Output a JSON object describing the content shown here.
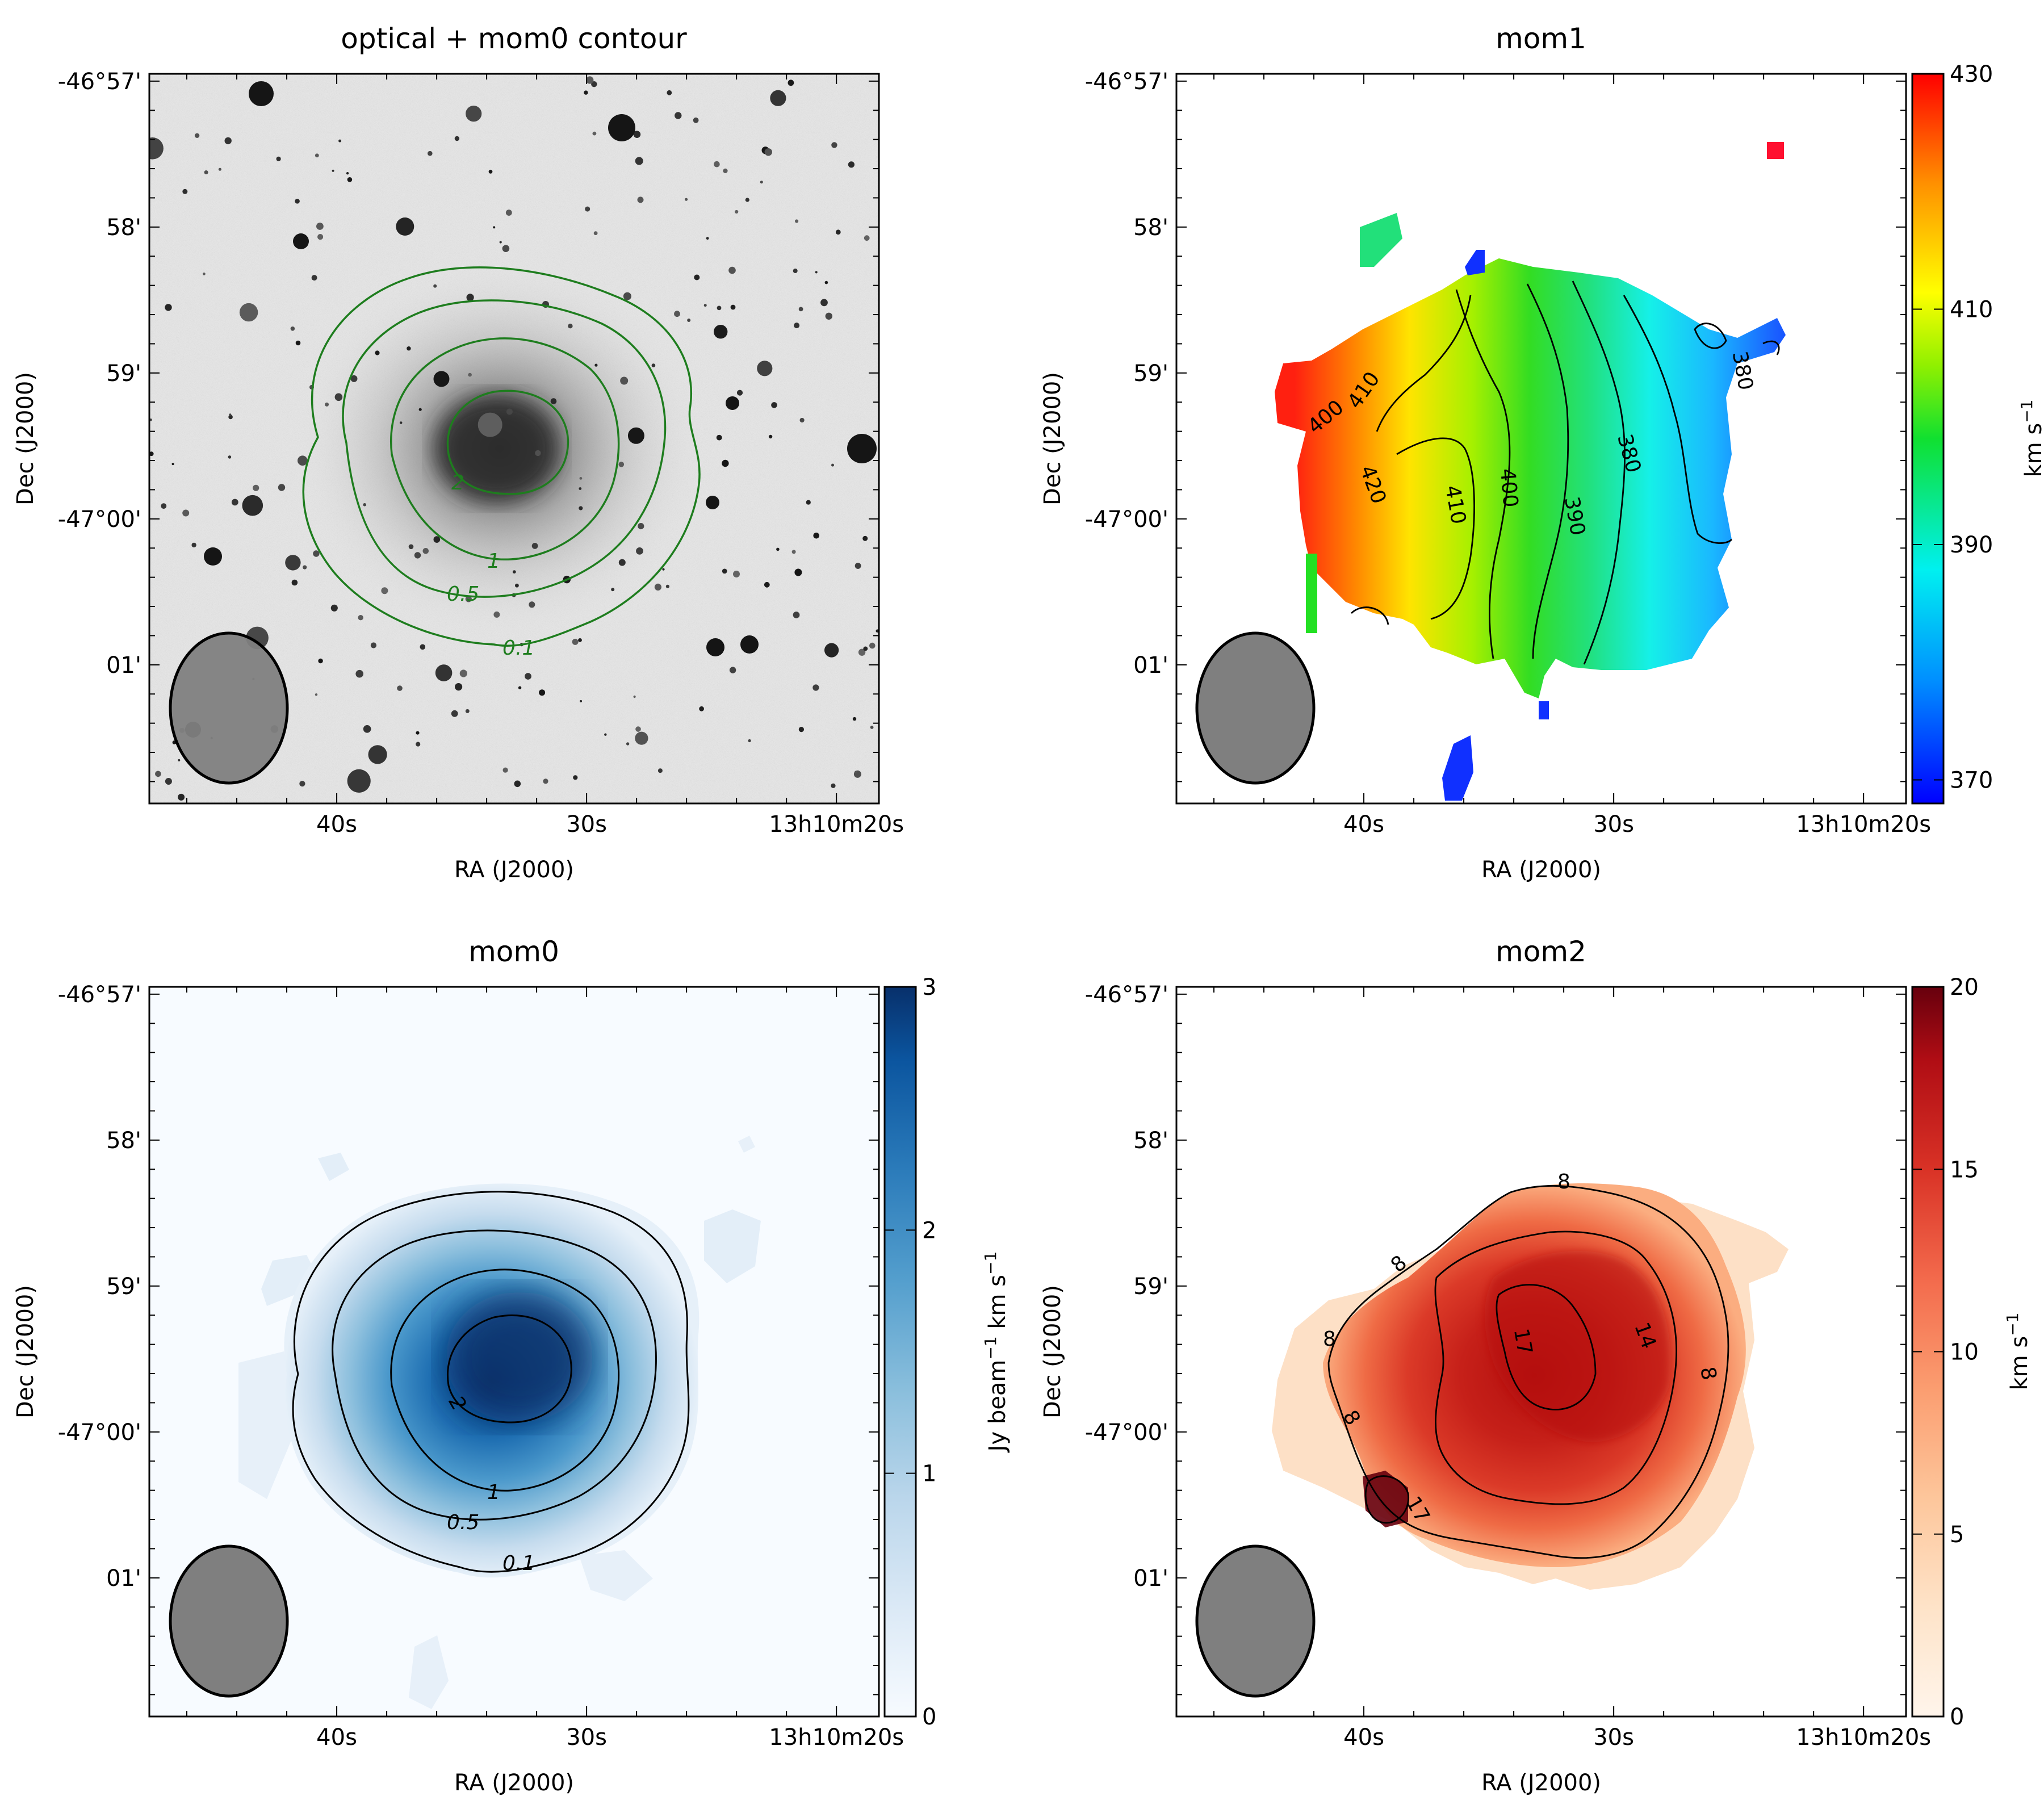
{
  "ra_axis": {
    "label": "RA (J2000)",
    "ticks": [
      {
        "label": "40s",
        "value": 40
      },
      {
        "label": "30s",
        "value": 30
      },
      {
        "label": "13h10m20s",
        "value": 20
      }
    ],
    "range_s": [
      47.5,
      18.3
    ]
  },
  "dec_axis": {
    "label": "Dec (J2000)",
    "ticks": [
      {
        "label": "-46°57'",
        "value": 0
      },
      {
        "label": "58'",
        "value": 1
      },
      {
        "label": "59'",
        "value": 2
      },
      {
        "label": "-47°00'",
        "value": 3
      },
      {
        "label": "01'",
        "value": 4
      }
    ],
    "range_arcmin": [
      -0.05,
      4.95
    ]
  },
  "panels": {
    "optical": {
      "title": "optical + mom0 contour",
      "contour_labels": [
        "2",
        "1",
        "0.5",
        "0.1"
      ]
    },
    "mom1": {
      "title": "mom1",
      "colorbar": {
        "label": "km s",
        "label_sup": "−1",
        "ticks": [
          "370",
          "390",
          "410",
          "430"
        ],
        "range": [
          368,
          430
        ]
      },
      "contour_labels": [
        "400",
        "410",
        "420",
        "410",
        "400",
        "390",
        "380",
        "380"
      ]
    },
    "mom0": {
      "title": "mom0",
      "colorbar": {
        "label_parts": [
          "Jy beam",
          "−1",
          " km s",
          "−1"
        ],
        "ticks": [
          "0",
          "1",
          "2",
          "3"
        ],
        "range": [
          0,
          3
        ]
      },
      "contour_labels": [
        "2",
        "1",
        "0.5",
        "0.1"
      ]
    },
    "mom2": {
      "title": "mom2",
      "colorbar": {
        "label": "km s",
        "label_sup": "−1",
        "ticks": [
          "0",
          "5",
          "10",
          "15",
          "20"
        ],
        "range": [
          0,
          20
        ]
      },
      "contour_labels": [
        "8",
        "8",
        "8",
        "14",
        "8",
        "17",
        "8",
        "17"
      ]
    }
  },
  "chart_data": [
    {
      "type": "heatmap",
      "panel": "optical",
      "title": "optical + mom0 contour",
      "xlabel": "RA (J2000)",
      "ylabel": "Dec (J2000)",
      "image": "optical sky image (grayscale) with galaxy near center",
      "contour_levels": [
        0.1,
        0.5,
        1,
        2
      ],
      "contour_color": "#1e7d1e"
    },
    {
      "type": "heatmap",
      "panel": "mom1",
      "title": "mom1",
      "xlabel": "RA (J2000)",
      "ylabel": "Dec (J2000)",
      "colorbar_range": [
        368,
        430
      ],
      "colorbar_ticks": [
        370,
        390,
        410,
        430
      ],
      "contour_levels": [
        380,
        390,
        400,
        410,
        420
      ]
    },
    {
      "type": "heatmap",
      "panel": "mom0",
      "title": "mom0",
      "xlabel": "RA (J2000)",
      "ylabel": "Dec (J2000)",
      "colorbar_range": [
        0,
        3
      ],
      "colorbar_ticks": [
        0,
        1,
        2,
        3
      ],
      "contour_levels": [
        0.1,
        0.5,
        1,
        2
      ],
      "peak_value": 3
    },
    {
      "type": "heatmap",
      "panel": "mom2",
      "title": "mom2",
      "xlabel": "RA (J2000)",
      "ylabel": "Dec (J2000)",
      "colorbar_range": [
        0,
        20
      ],
      "colorbar_ticks": [
        0,
        5,
        10,
        15,
        20
      ],
      "contour_levels": [
        8,
        14,
        17
      ]
    }
  ]
}
